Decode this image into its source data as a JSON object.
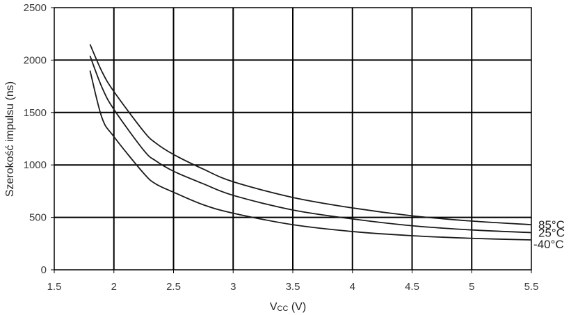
{
  "chart_data": {
    "type": "line",
    "xlabel": "VCC (V)",
    "xlabel_main": "V",
    "xlabel_sub": "CC",
    "xlabel_unit": " (V)",
    "ylabel": "Szerokość impulsu (ns)",
    "xlim": [
      1.5,
      5.5
    ],
    "ylim": [
      0,
      2500
    ],
    "x_ticks": [
      "1.5",
      "2",
      "2.5",
      "3",
      "3.5",
      "4",
      "4.5",
      "5",
      "5.5"
    ],
    "y_ticks": [
      "0",
      "500",
      "1000",
      "1500",
      "2000",
      "2500"
    ],
    "grid": true,
    "legend": "right (inline labels at line ends)",
    "series": [
      {
        "name": "85°C",
        "x": [
          1.8,
          1.9,
          2.0,
          2.25,
          2.35,
          2.5,
          2.75,
          3.0,
          3.5,
          4.0,
          4.5,
          5.0,
          5.5
        ],
        "y": [
          2150,
          1890,
          1700,
          1320,
          1210,
          1100,
          960,
          840,
          690,
          590,
          515,
          465,
          430
        ]
      },
      {
        "name": "25°C",
        "x": [
          1.8,
          1.9,
          2.0,
          2.25,
          2.35,
          2.5,
          2.75,
          3.0,
          3.5,
          4.0,
          4.5,
          5.0,
          5.5
        ],
        "y": [
          2040,
          1740,
          1530,
          1140,
          1040,
          940,
          820,
          710,
          570,
          485,
          420,
          380,
          355
        ]
      },
      {
        "name": "-40°C",
        "x": [
          1.8,
          1.9,
          2.0,
          2.25,
          2.35,
          2.5,
          2.75,
          3.0,
          3.5,
          4.0,
          4.5,
          5.0,
          5.5
        ],
        "y": [
          1900,
          1450,
          1270,
          920,
          820,
          740,
          620,
          540,
          430,
          365,
          325,
          300,
          285
        ]
      }
    ]
  }
}
